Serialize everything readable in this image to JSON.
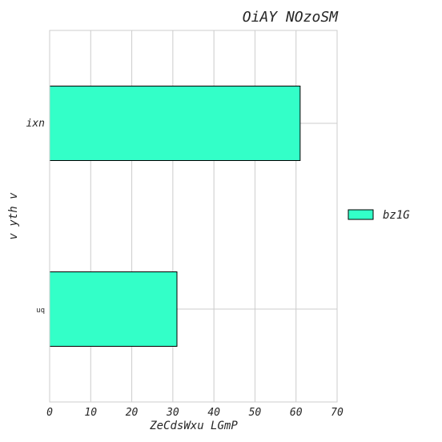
{
  "chart_data": {
    "type": "bar",
    "orientation": "horizontal",
    "title": "OiAY NOzoSM",
    "xlabel": "ZeCdsWxu LGmP",
    "ylabel": "v yth v",
    "categories": [
      "ixn",
      "uq"
    ],
    "series": [
      {
        "name": "bz1G",
        "values": [
          61,
          31
        ],
        "color": "#33ffc8"
      }
    ],
    "xlim": [
      0,
      70
    ],
    "xticks": [
      0,
      10,
      20,
      30,
      40,
      50,
      60,
      70
    ],
    "grid": true,
    "legend": "right"
  }
}
